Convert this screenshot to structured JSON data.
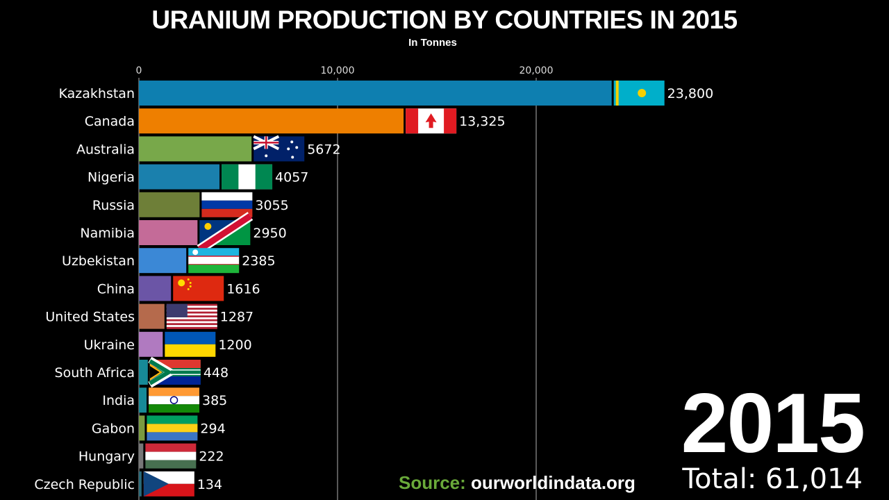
{
  "title": "URANIUM PRODUCTION BY COUNTRIES IN 2015",
  "subtitle": "In Tonnes",
  "year": "2015",
  "total": "Total: 61,014",
  "source": {
    "label": "Source:",
    "value": "ourworldindata.org"
  },
  "chart_data": {
    "type": "bar",
    "orientation": "horizontal",
    "title": "URANIUM PRODUCTION BY COUNTRIES IN 2015",
    "subtitle": "In Tonnes",
    "xlim": [
      0,
      26000
    ],
    "ticks": [
      0,
      10000,
      20000
    ],
    "tick_labels": [
      "0",
      "10,000",
      "20,000"
    ],
    "grid": true,
    "categories": [
      "Kazakhstan",
      "Canada",
      "Australia",
      "Nigeria",
      "Russia",
      "Namibia",
      "Uzbekistan",
      "China",
      "United States",
      "Ukraine",
      "South Africa",
      "India",
      "Gabon",
      "Hungary",
      "Czech Republic"
    ],
    "values": [
      23800,
      13325,
      5672,
      4057,
      3055,
      2950,
      2385,
      1616,
      1287,
      1200,
      448,
      385,
      294,
      222,
      134
    ],
    "value_labels": [
      "23,800",
      "13,325",
      "5672",
      "4057",
      "3055",
      "2950",
      "2385",
      "1616",
      "1287",
      "1200",
      "448",
      "385",
      "294",
      "222",
      "134"
    ],
    "colors": [
      "#0e7fb0",
      "#ee7f00",
      "#78a84a",
      "#1a80ad",
      "#6e7f38",
      "#c46b98",
      "#3b88d6",
      "#6b55a6",
      "#b56a4c",
      "#b07ac0",
      "#178a98",
      "#178a98",
      "#7a9a40",
      "#777777",
      "#2a6a7a"
    ],
    "flags": [
      "kz",
      "ca",
      "au",
      "ng",
      "ru",
      "na",
      "uz",
      "cn",
      "us",
      "ua",
      "za",
      "in",
      "ga",
      "hu",
      "cz"
    ]
  }
}
